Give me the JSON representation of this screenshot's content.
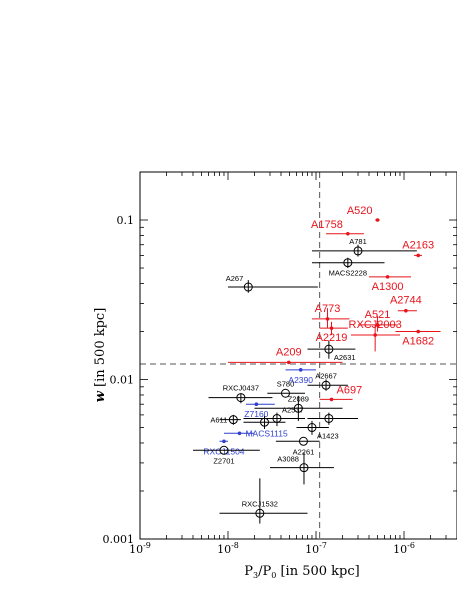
{
  "chart_data": {
    "type": "scatter",
    "x_axis": {
      "label_main": "P",
      "label_sub1": "3",
      "label_mid": "/P",
      "label_sub2": "0",
      "label_tail": " [in 500 kpc]",
      "scale": "log",
      "range": [
        1e-09,
        4e-06
      ],
      "ticks": [
        {
          "value": 1e-09,
          "base": "10",
          "exp": "-9"
        },
        {
          "value": 1e-08,
          "base": "10",
          "exp": "-8"
        },
        {
          "value": 1e-07,
          "base": "10",
          "exp": "-7"
        },
        {
          "value": 1e-06,
          "base": "10",
          "exp": "-6"
        }
      ]
    },
    "y_axis": {
      "label_w": "w",
      "label_tail": " [in 500 kpc]",
      "scale": "log",
      "range": [
        0.001,
        0.2
      ],
      "ticks": [
        {
          "value": 0.001,
          "text": "0.001"
        },
        {
          "value": 0.01,
          "text": "0.01"
        },
        {
          "value": 0.1,
          "text": "0.1"
        }
      ]
    },
    "reference_lines": {
      "x_dashed": 1.1e-07,
      "y_dashed": 0.0125
    },
    "colors": {
      "red": "#e8141c",
      "blue": "#2f3fd0",
      "black": "#000000"
    },
    "points": [
      {
        "label": "A520",
        "x": 5e-07,
        "y": 0.1,
        "xerr": [
          4.7e-07,
          5.3e-07
        ],
        "color": "red",
        "marker": "dot",
        "pos": "nw"
      },
      {
        "label": "A1758",
        "x": 2.3e-07,
        "y": 0.082,
        "xerr": [
          1.3e-07,
          3.5e-07
        ],
        "color": "red",
        "marker": "dot",
        "pos": "nw"
      },
      {
        "label": "A2163",
        "x": 1.45e-06,
        "y": 0.06,
        "xerr": [
          1.3e-06,
          1.6e-06
        ],
        "color": "red",
        "marker": "dot",
        "pos": "n"
      },
      {
        "label": "A781",
        "x": 3e-07,
        "y": 0.064,
        "xerr": [
          9e-08,
          1.4e-06
        ],
        "yerr": [
          0.059,
          0.07
        ],
        "color": "black",
        "marker": "circle",
        "pos": "n"
      },
      {
        "label": "MACS2228",
        "x": 2.3e-07,
        "y": 0.054,
        "xerr": [
          9e-08,
          6e-07
        ],
        "yerr": [
          0.05,
          0.058
        ],
        "color": "black",
        "marker": "circle",
        "pos": "s"
      },
      {
        "label": "A1300",
        "x": 6.5e-07,
        "y": 0.044,
        "xerr": [
          4e-07,
          1.2e-06
        ],
        "color": "red",
        "marker": "dot",
        "pos": "s"
      },
      {
        "label": "A267",
        "x": 1.7e-08,
        "y": 0.038,
        "xerr": [
          1e-08,
          1.05e-07
        ],
        "yerr": [
          0.035,
          0.042
        ],
        "color": "black",
        "marker": "circle",
        "pos": "nw"
      },
      {
        "label": "A2744",
        "x": 1.05e-06,
        "y": 0.027,
        "xerr": [
          8.5e-07,
          1.4e-06
        ],
        "color": "red",
        "marker": "dot",
        "pos": "n"
      },
      {
        "label": "A773",
        "x": 1.35e-07,
        "y": 0.024,
        "xerr": [
          9e-08,
          2.4e-07
        ],
        "yerr": [
          0.021,
          0.028
        ],
        "color": "red",
        "marker": "dot",
        "pos": "n"
      },
      {
        "label": "A521",
        "x": 5e-07,
        "y": 0.022,
        "xerr": [
          3e-07,
          8.5e-07
        ],
        "yerr": [
          0.02,
          0.025
        ],
        "color": "red",
        "marker": "dot",
        "pos": "n"
      },
      {
        "label": "A2219",
        "x": 1.5e-07,
        "y": 0.021,
        "xerr": [
          1.1e-07,
          2.3e-07
        ],
        "yerr": [
          0.019,
          0.023
        ],
        "color": "red",
        "marker": "dot",
        "pos": "s"
      },
      {
        "label": "RXCJ2003",
        "x": 4.7e-07,
        "y": 0.019,
        "xerr": [
          2.5e-07,
          9e-07
        ],
        "yerr": [
          0.015,
          0.022
        ],
        "color": "red",
        "marker": "dot",
        "pos": "n"
      },
      {
        "label": "A1682",
        "x": 1.45e-06,
        "y": 0.02,
        "xerr": [
          8e-07,
          2.6e-06
        ],
        "color": "red",
        "marker": "dot",
        "pos": "s"
      },
      {
        "label": "A2631",
        "x": 1.4e-07,
        "y": 0.0155,
        "xerr": [
          8e-08,
          2.8e-07
        ],
        "yerr": [
          0.0135,
          0.0175
        ],
        "color": "black",
        "marker": "circle",
        "pos": "se"
      },
      {
        "label": "A209",
        "x": 4.9e-08,
        "y": 0.0128,
        "xerr": [
          1e-08,
          2e-07
        ],
        "color": "red",
        "marker": "dot",
        "pos": "n"
      },
      {
        "label": "A2390",
        "x": 6.7e-08,
        "y": 0.0115,
        "xerr": [
          4.5e-08,
          1e-07
        ],
        "color": "blue",
        "marker": "dot",
        "pos": "s"
      },
      {
        "label": "A2667",
        "x": 1.3e-07,
        "y": 0.0092,
        "xerr": [
          8e-08,
          2.3e-07
        ],
        "yerr": [
          0.0085,
          0.01
        ],
        "color": "black",
        "marker": "circle",
        "pos": "n"
      },
      {
        "label": "S780",
        "x": 4.5e-08,
        "y": 0.0082,
        "xerr": [
          2.8e-08,
          7.5e-08
        ],
        "color": "black",
        "marker": "circle",
        "pos": "n"
      },
      {
        "label": "RXCJ0437",
        "x": 1.4e-08,
        "y": 0.0077,
        "xerr": [
          6e-09,
          3.2e-08
        ],
        "yerr": [
          0.0071,
          0.0082
        ],
        "color": "black",
        "marker": "circle",
        "pos": "n"
      },
      {
        "label": "A697",
        "x": 1.5e-07,
        "y": 0.0075,
        "xerr": [
          1.1e-07,
          2.6e-07
        ],
        "color": "red",
        "marker": "dot",
        "pos": "ne"
      },
      {
        "label": "Z2089",
        "x": 6.3e-08,
        "y": 0.0066,
        "xerr": [
          2e-08,
          2e-07
        ],
        "yerr": [
          0.0055,
          0.0079
        ],
        "color": "black",
        "marker": "circle",
        "pos": "n"
      },
      {
        "label": "Z7160",
        "x": 2.1e-08,
        "y": 0.007,
        "xerr": [
          1.6e-08,
          3.4e-08
        ],
        "color": "blue",
        "marker": "dot",
        "pos": "s"
      },
      {
        "label": "A611",
        "x": 1.15e-08,
        "y": 0.0056,
        "xerr": [
          8e-09,
          1.4e-08
        ],
        "yerr": [
          0.0052,
          0.006
        ],
        "color": "black",
        "marker": "circle",
        "pos": "w"
      },
      {
        "label": "A2537",
        "x": 3.6e-08,
        "y": 0.0057,
        "xerr": [
          1.5e-08,
          7.5e-08
        ],
        "yerr": [
          0.0051,
          0.0062
        ],
        "color": "black",
        "marker": "circle",
        "pos": "ne"
      },
      {
        "label": "",
        "x": 1.4e-07,
        "y": 0.0057,
        "xerr": [
          8e-08,
          3e-07
        ],
        "yerr": [
          0.0052,
          0.0062
        ],
        "color": "black",
        "marker": "circle",
        "pos": "n"
      },
      {
        "label": "",
        "x": 2.6e-08,
        "y": 0.0054,
        "xerr": [
          1.5e-08,
          4.5e-08
        ],
        "yerr": [
          0.0049,
          0.0059
        ],
        "color": "black",
        "marker": "circle",
        "pos": "n"
      },
      {
        "label": "A1423",
        "x": 9e-08,
        "y": 0.005,
        "xerr": [
          6e-08,
          1.4e-07
        ],
        "yerr": [
          0.0045,
          0.0055
        ],
        "color": "black",
        "marker": "circle",
        "pos": "se"
      },
      {
        "label": "MACS1115",
        "x": 1.35e-08,
        "y": 0.0046,
        "xerr": [
          9e-09,
          2e-08
        ],
        "color": "blue",
        "marker": "dot",
        "pos": "e"
      },
      {
        "label": "RXCJ1504",
        "x": 9e-09,
        "y": 0.0041,
        "xerr": [
          8e-09,
          1e-08
        ],
        "color": "blue",
        "marker": "dot",
        "pos": "s"
      },
      {
        "label": "A2261",
        "x": 7.2e-08,
        "y": 0.0041,
        "xerr": [
          3.5e-08,
          1.1e-07
        ],
        "color": "black",
        "marker": "circle",
        "pos": "s"
      },
      {
        "label": "Z2701",
        "x": 9e-09,
        "y": 0.0036,
        "xerr": [
          4e-09,
          2.3e-08
        ],
        "color": "black",
        "marker": "circle",
        "pos": "s"
      },
      {
        "label": "A3088",
        "x": 7.3e-08,
        "y": 0.0028,
        "xerr": [
          3e-08,
          1.6e-07
        ],
        "yerr": [
          0.0022,
          0.0035
        ],
        "color": "black",
        "marker": "circle",
        "pos": "nw"
      },
      {
        "label": "RXCJ1532",
        "x": 2.3e-08,
        "y": 0.00145,
        "xerr": [
          8e-09,
          8e-08
        ],
        "yerr": [
          0.00125,
          0.0024
        ],
        "color": "black",
        "marker": "circle",
        "pos": "n"
      }
    ]
  }
}
